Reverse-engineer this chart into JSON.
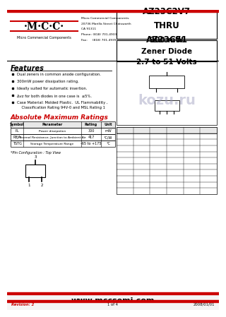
{
  "bg_color": "#ffffff",
  "red_color": "#cc0000",
  "title_part": "AZ23C2V7\nTHRU\nAZ23C51",
  "title_desc": "300 mW\nZener Diode\n2.7 to 51 Volts",
  "company_name": "·M·C·C·",
  "company_sub": "Micro Commercial Components",
  "company_addr_lines": [
    "Micro Commercial Components",
    "20736 Marilla Street Chatsworth",
    "CA 91311",
    "Phone: (818) 701-4933",
    "Fax:     (818) 701-4939"
  ],
  "features_title": "Features",
  "features": [
    "Dual zeners in common anode configuration.",
    "300mW power dissipation rating.",
    "Ideally suited for automatic insertion.",
    "Δvz for both diodes in one case is  ≤5%.",
    "Case Material: Molded Plastic.  UL Flammability ,\n    Classification Rating 94V-0 and MSL Rating 1"
  ],
  "abs_max_title": "Absolute Maximum Ratings",
  "table_headers": [
    "Symbol",
    "Parameter",
    "Rating",
    "Unit"
  ],
  "table_rows": [
    [
      "PL",
      "Power dissipation",
      "300",
      "mW"
    ],
    [
      "RθJA",
      "Thermal Resistance, Junction to Ambient Air",
      "417",
      "°C/W"
    ],
    [
      "TSTG",
      "Storage Temperature Range",
      "-65 to +175",
      "°C"
    ]
  ],
  "pin_config_label": "*Pin Configuration : Top View",
  "footer_url": "www.mccsemi.com",
  "footer_rev": "Revision: 2",
  "footer_page": "1 of 4",
  "footer_date": "2008/01/01",
  "watermark": "kozu.ru",
  "gray_light": "#e8e8e8",
  "gray_med": "#cccccc"
}
